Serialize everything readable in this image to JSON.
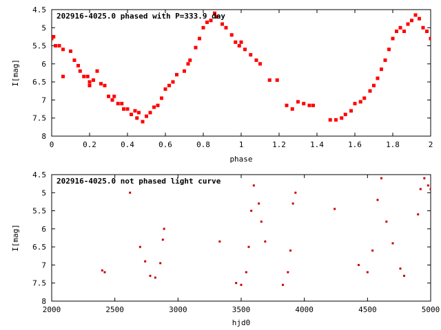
{
  "chart_data": [
    {
      "type": "scatter",
      "title": "202916-4025.0 phased with P=333.9 day",
      "xlabel": "phase",
      "ylabel": "I[mag]",
      "xlim": [
        0,
        2
      ],
      "ylim": [
        4.5,
        8
      ],
      "y_inverted": true,
      "grid": false,
      "marker_color": "#ff0000",
      "xticks": [
        "0",
        "0.2",
        "0.4",
        "0.6",
        "0.8",
        "1",
        "1.2",
        "1.4",
        "1.6",
        "1.8",
        "2"
      ],
      "yticks": [
        "4.5",
        "5",
        "5.5",
        "6",
        "6.5",
        "7",
        "7.5",
        "8"
      ],
      "points": [
        [
          0.0,
          5.3
        ],
        [
          0.01,
          5.25
        ],
        [
          0.02,
          5.5
        ],
        [
          0.04,
          5.5
        ],
        [
          0.06,
          6.35
        ],
        [
          0.06,
          5.6
        ],
        [
          0.1,
          5.65
        ],
        [
          0.12,
          5.9
        ],
        [
          0.14,
          6.05
        ],
        [
          0.15,
          6.2
        ],
        [
          0.17,
          6.35
        ],
        [
          0.19,
          6.35
        ],
        [
          0.2,
          6.5
        ],
        [
          0.2,
          6.6
        ],
        [
          0.22,
          6.45
        ],
        [
          0.24,
          6.2
        ],
        [
          0.26,
          6.55
        ],
        [
          0.28,
          6.6
        ],
        [
          0.3,
          6.9
        ],
        [
          0.32,
          7.0
        ],
        [
          0.33,
          6.9
        ],
        [
          0.35,
          7.1
        ],
        [
          0.37,
          7.1
        ],
        [
          0.38,
          7.25
        ],
        [
          0.4,
          7.25
        ],
        [
          0.42,
          7.4
        ],
        [
          0.44,
          7.3
        ],
        [
          0.45,
          7.5
        ],
        [
          0.46,
          7.35
        ],
        [
          0.48,
          7.6
        ],
        [
          0.5,
          7.45
        ],
        [
          0.52,
          7.35
        ],
        [
          0.54,
          7.2
        ],
        [
          0.56,
          7.15
        ],
        [
          0.58,
          6.95
        ],
        [
          0.6,
          6.7
        ],
        [
          0.62,
          6.6
        ],
        [
          0.64,
          6.5
        ],
        [
          0.66,
          6.3
        ],
        [
          0.7,
          6.2
        ],
        [
          0.72,
          6.0
        ],
        [
          0.73,
          5.9
        ],
        [
          0.76,
          5.55
        ],
        [
          0.78,
          5.3
        ],
        [
          0.8,
          5.0
        ],
        [
          0.82,
          4.85
        ],
        [
          0.84,
          4.8
        ],
        [
          0.86,
          4.6
        ],
        [
          0.87,
          4.7
        ],
        [
          0.9,
          4.9
        ],
        [
          0.92,
          5.0
        ],
        [
          0.95,
          5.2
        ],
        [
          0.97,
          5.4
        ],
        [
          0.99,
          5.5
        ],
        [
          1.0,
          5.4
        ],
        [
          1.02,
          5.6
        ],
        [
          1.05,
          5.75
        ],
        [
          1.08,
          5.9
        ],
        [
          1.1,
          6.0
        ],
        [
          1.15,
          6.45
        ],
        [
          1.19,
          6.45
        ],
        [
          1.24,
          7.15
        ],
        [
          1.27,
          7.25
        ],
        [
          1.3,
          7.05
        ],
        [
          1.33,
          7.1
        ],
        [
          1.36,
          7.15
        ],
        [
          1.38,
          7.15
        ],
        [
          1.47,
          7.55
        ],
        [
          1.5,
          7.55
        ],
        [
          1.53,
          7.5
        ],
        [
          1.55,
          7.4
        ],
        [
          1.58,
          7.3
        ],
        [
          1.6,
          7.1
        ],
        [
          1.63,
          7.05
        ],
        [
          1.65,
          6.95
        ],
        [
          1.68,
          6.75
        ],
        [
          1.7,
          6.6
        ],
        [
          1.72,
          6.4
        ],
        [
          1.74,
          6.15
        ],
        [
          1.76,
          5.9
        ],
        [
          1.78,
          5.6
        ],
        [
          1.8,
          5.3
        ],
        [
          1.82,
          5.1
        ],
        [
          1.84,
          5.0
        ],
        [
          1.86,
          5.1
        ],
        [
          1.88,
          4.9
        ],
        [
          1.9,
          4.8
        ],
        [
          1.92,
          4.65
        ],
        [
          1.94,
          4.75
        ],
        [
          1.96,
          5.0
        ],
        [
          1.98,
          5.1
        ],
        [
          2.0,
          5.3
        ]
      ]
    },
    {
      "type": "scatter",
      "title": "202916-4025.0 not phased light curve",
      "xlabel": "hjd0",
      "ylabel": "I[mag]",
      "xlim": [
        2000,
        5000
      ],
      "ylim": [
        4.5,
        8
      ],
      "y_inverted": true,
      "grid": false,
      "marker_color": "#cc0000",
      "xticks": [
        "2000",
        "2500",
        "3000",
        "3500",
        "4000",
        "4500",
        "5000"
      ],
      "yticks": [
        "4.5",
        "5",
        "5.5",
        "6",
        "6.5",
        "7",
        "7.5",
        "8"
      ],
      "points": [
        [
          2400,
          7.15
        ],
        [
          2420,
          7.2
        ],
        [
          2620,
          5.0
        ],
        [
          2700,
          6.5
        ],
        [
          2740,
          6.9
        ],
        [
          2780,
          7.3
        ],
        [
          2820,
          7.35
        ],
        [
          2860,
          6.95
        ],
        [
          2880,
          6.3
        ],
        [
          2890,
          6.0
        ],
        [
          3330,
          6.35
        ],
        [
          3460,
          7.5
        ],
        [
          3500,
          7.55
        ],
        [
          3540,
          7.2
        ],
        [
          3560,
          6.5
        ],
        [
          3580,
          5.5
        ],
        [
          3600,
          4.8
        ],
        [
          3640,
          5.3
        ],
        [
          3660,
          5.8
        ],
        [
          3690,
          6.35
        ],
        [
          3830,
          7.55
        ],
        [
          3870,
          7.2
        ],
        [
          3890,
          6.6
        ],
        [
          3910,
          5.3
        ],
        [
          3930,
          5.0
        ],
        [
          4240,
          5.45
        ],
        [
          4430,
          7.0
        ],
        [
          4500,
          7.2
        ],
        [
          4540,
          6.6
        ],
        [
          4580,
          5.2
        ],
        [
          4610,
          4.6
        ],
        [
          4650,
          5.8
        ],
        [
          4700,
          6.4
        ],
        [
          4760,
          7.1
        ],
        [
          4790,
          7.3
        ],
        [
          4900,
          5.6
        ],
        [
          4920,
          4.9
        ],
        [
          4950,
          4.6
        ],
        [
          4980,
          4.8
        ],
        [
          5000,
          4.9
        ]
      ]
    }
  ]
}
